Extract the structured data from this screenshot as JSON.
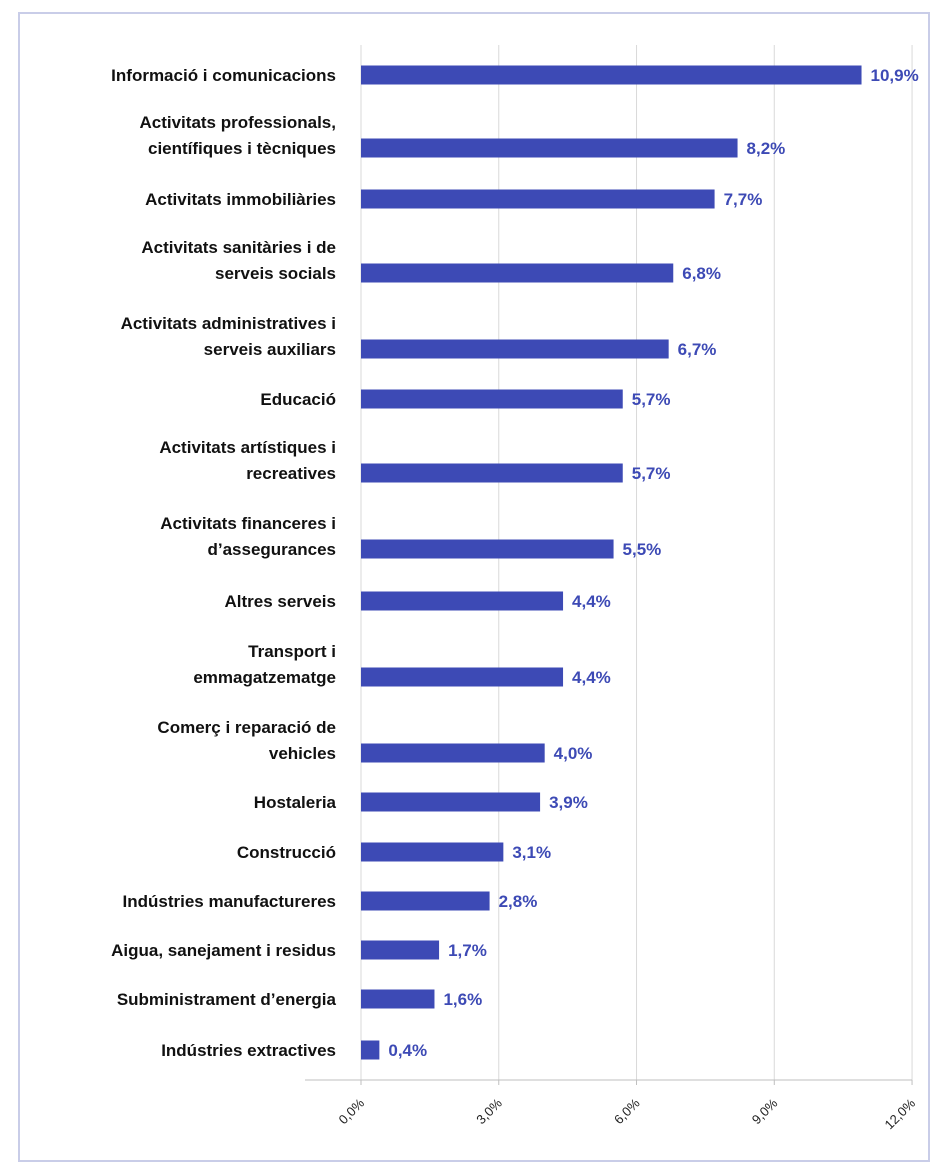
{
  "chart_data": {
    "type": "bar",
    "orientation": "horizontal",
    "bar_color": "#3d4ab5",
    "value_label_color": "#3d4ab5",
    "grid": true,
    "xlim": [
      0,
      12
    ],
    "x_ticks": [
      "0,0%",
      "3,0%",
      "6,0%",
      "9,0%",
      "12,0%"
    ],
    "categories": [
      [
        "Informació i comunicacions"
      ],
      [
        "Activitats professionals,",
        "científiques i tècniques"
      ],
      [
        "Activitats immobiliàries"
      ],
      [
        "Activitats sanitàries i de",
        "serveis socials"
      ],
      [
        "Activitats administratives i",
        "serveis auxiliars"
      ],
      [
        "Educació"
      ],
      [
        "Activitats artístiques i",
        "recreatives"
      ],
      [
        "Activitats financeres i",
        "d’assegurances"
      ],
      [
        "Altres serveis"
      ],
      [
        "Transport i",
        "emmagatzematge"
      ],
      [
        "Comerç i reparació de",
        "vehicles"
      ],
      [
        "Hostaleria"
      ],
      [
        "Construcció"
      ],
      [
        "Indústries manufactureres"
      ],
      [
        "Aigua, sanejament i residus"
      ],
      [
        "Subministrament d’energia"
      ],
      [
        "Indústries extractives"
      ]
    ],
    "values": [
      10.9,
      8.2,
      7.7,
      6.8,
      6.7,
      5.7,
      5.7,
      5.5,
      4.4,
      4.4,
      4.0,
      3.9,
      3.1,
      2.8,
      1.7,
      1.6,
      0.4
    ],
    "value_labels": [
      "10,9%",
      "8,2%",
      "7,7%",
      "6,8%",
      "6,7%",
      "5,7%",
      "5,7%",
      "5,5%",
      "4,4%",
      "4,4%",
      "4,0%",
      "3,9%",
      "3,1%",
      "2,8%",
      "1,7%",
      "1,6%",
      "0,4%"
    ]
  }
}
